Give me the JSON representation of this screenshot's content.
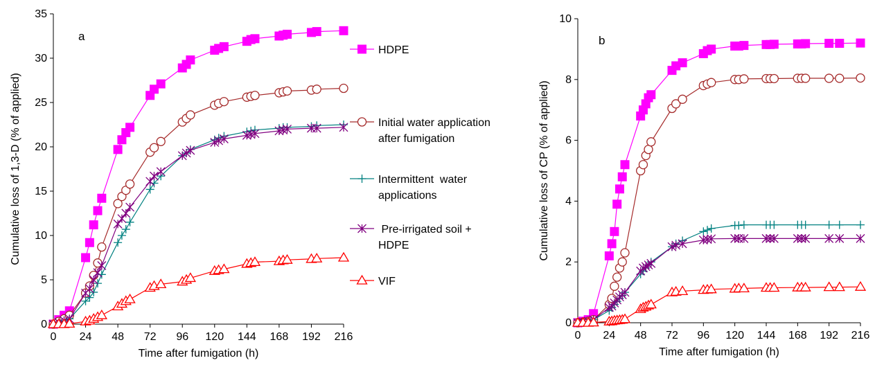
{
  "chart_data": [
    {
      "type": "line",
      "panel_label": "a",
      "xlabel": "Time after fumigation (h)",
      "ylabel": "Cumulative loss of 1,3-D (% of applied)",
      "xlim": [
        0,
        216
      ],
      "ylim": [
        0,
        35
      ],
      "xticks": [
        0,
        24,
        48,
        72,
        96,
        120,
        144,
        168,
        192,
        216
      ],
      "yticks": [
        0,
        5,
        10,
        15,
        20,
        25,
        30,
        35
      ],
      "grid": false,
      "legend_position": "right",
      "series": [
        {
          "name": "HDPE",
          "color": "#ff00ff",
          "marker": "filled-square",
          "x": [
            0,
            4,
            8,
            12,
            24,
            27,
            30,
            33,
            36,
            48,
            51,
            54,
            57,
            72,
            75,
            80,
            96,
            99,
            102,
            120,
            123,
            127,
            144,
            147,
            150,
            168,
            171,
            174,
            192,
            196,
            216
          ],
          "y": [
            0,
            0.5,
            1,
            1.5,
            7.5,
            9.2,
            11.2,
            12.8,
            14.2,
            19.7,
            20.8,
            21.6,
            22.2,
            25.8,
            26.5,
            27.1,
            28.9,
            29.3,
            29.8,
            30.9,
            31.1,
            31.3,
            31.9,
            32.1,
            32.2,
            32.5,
            32.6,
            32.7,
            32.9,
            33.0,
            33.1
          ]
        },
        {
          "name": "Initial water application after fumigation",
          "color": "#a52a2a",
          "marker": "open-circle",
          "x": [
            0,
            4,
            8,
            12,
            24,
            27,
            30,
            33,
            36,
            48,
            51,
            54,
            57,
            72,
            75,
            80,
            96,
            99,
            102,
            120,
            123,
            127,
            144,
            147,
            150,
            168,
            171,
            174,
            192,
            196,
            216
          ],
          "y": [
            0,
            0.3,
            0.6,
            1.0,
            3.5,
            4.3,
            5.5,
            6.9,
            8.7,
            13.6,
            14.4,
            15.1,
            15.8,
            19.4,
            19.9,
            20.6,
            22.8,
            23.2,
            23.6,
            24.7,
            24.9,
            25.1,
            25.6,
            25.7,
            25.8,
            26.1,
            26.2,
            26.3,
            26.4,
            26.5,
            26.6
          ]
        },
        {
          "name": "Intermittent  water applications",
          "color": "#008080",
          "marker": "plus",
          "x": [
            0,
            4,
            8,
            12,
            24,
            27,
            30,
            33,
            36,
            48,
            51,
            54,
            57,
            72,
            75,
            80,
            96,
            99,
            102,
            120,
            123,
            127,
            144,
            147,
            150,
            168,
            171,
            174,
            192,
            196,
            216
          ],
          "y": [
            0,
            0.2,
            0.4,
            0.6,
            2.6,
            3.0,
            3.6,
            4.6,
            5.6,
            9.2,
            10.0,
            10.7,
            11.5,
            15.2,
            15.9,
            16.7,
            19.0,
            19.3,
            19.7,
            20.8,
            21.0,
            21.2,
            21.7,
            21.8,
            21.9,
            22.1,
            22.2,
            22.2,
            22.3,
            22.4,
            22.5
          ]
        },
        {
          "name": "Pre-irrigated soil + HDPE",
          "color": "#800080",
          "marker": "asterisk",
          "x": [
            0,
            4,
            8,
            12,
            24,
            27,
            30,
            33,
            36,
            48,
            51,
            54,
            57,
            72,
            75,
            80,
            96,
            99,
            102,
            120,
            123,
            127,
            144,
            147,
            150,
            168,
            171,
            174,
            192,
            196,
            216
          ],
          "y": [
            0,
            0.2,
            0.4,
            0.6,
            3.5,
            4.0,
            5.0,
            5.8,
            6.6,
            11.3,
            11.9,
            12.5,
            13.2,
            16.1,
            16.7,
            17.2,
            19.0,
            19.3,
            19.6,
            20.5,
            20.7,
            20.9,
            21.3,
            21.4,
            21.5,
            21.8,
            21.9,
            22.0,
            22.1,
            22.1,
            22.2
          ]
        },
        {
          "name": "VIF",
          "color": "#ff0000",
          "marker": "open-triangle",
          "x": [
            0,
            4,
            8,
            12,
            24,
            27,
            30,
            33,
            36,
            48,
            51,
            54,
            57,
            72,
            75,
            80,
            96,
            99,
            102,
            120,
            123,
            127,
            144,
            147,
            150,
            168,
            171,
            174,
            192,
            196,
            216
          ],
          "y": [
            0,
            0,
            0,
            0.05,
            0.3,
            0.4,
            0.6,
            0.8,
            1.0,
            2.0,
            2.3,
            2.6,
            2.8,
            4.1,
            4.3,
            4.5,
            4.8,
            5.0,
            5.2,
            6.0,
            6.1,
            6.2,
            6.8,
            6.9,
            7.0,
            7.1,
            7.2,
            7.25,
            7.35,
            7.4,
            7.5
          ]
        }
      ]
    },
    {
      "type": "line",
      "panel_label": "b",
      "xlabel": "Time after fumigation (h)",
      "ylabel": "Cumulative loss of CP (% of applied)",
      "xlim": [
        0,
        216
      ],
      "ylim": [
        0,
        10
      ],
      "xticks": [
        0,
        24,
        48,
        72,
        96,
        120,
        144,
        168,
        192,
        216
      ],
      "yticks": [
        0,
        2,
        4,
        6,
        8,
        10
      ],
      "grid": false,
      "series": [
        {
          "name": "HDPE",
          "color": "#ff00ff",
          "marker": "filled-square",
          "x": [
            0,
            4,
            8,
            12,
            24,
            26,
            28,
            30,
            32,
            34,
            36,
            48,
            50,
            52,
            54,
            56,
            72,
            75,
            80,
            96,
            99,
            102,
            120,
            123,
            127,
            144,
            147,
            150,
            168,
            171,
            174,
            192,
            200,
            216
          ],
          "y": [
            0,
            0.05,
            0.1,
            0.3,
            2.2,
            2.6,
            3.0,
            3.9,
            4.4,
            4.8,
            5.2,
            6.8,
            7.0,
            7.2,
            7.4,
            7.5,
            8.3,
            8.45,
            8.55,
            8.85,
            8.95,
            9.0,
            9.1,
            9.1,
            9.12,
            9.15,
            9.15,
            9.16,
            9.17,
            9.17,
            9.18,
            9.19,
            9.19,
            9.2
          ]
        },
        {
          "name": "Initial water application after fumigation",
          "color": "#a52a2a",
          "marker": "open-circle",
          "x": [
            0,
            4,
            8,
            12,
            24,
            26,
            28,
            30,
            32,
            34,
            36,
            48,
            50,
            52,
            54,
            56,
            72,
            75,
            80,
            96,
            99,
            102,
            120,
            123,
            127,
            144,
            147,
            150,
            168,
            171,
            174,
            192,
            200,
            216
          ],
          "y": [
            0,
            0.02,
            0.05,
            0.1,
            0.6,
            0.8,
            1.2,
            1.5,
            1.8,
            2.0,
            2.3,
            5.0,
            5.2,
            5.5,
            5.7,
            5.95,
            7.05,
            7.2,
            7.35,
            7.8,
            7.85,
            7.9,
            8.0,
            8.0,
            8.02,
            8.03,
            8.03,
            8.03,
            8.04,
            8.04,
            8.04,
            8.04,
            8.04,
            8.05
          ]
        },
        {
          "name": "Intermittent  water applications",
          "color": "#008080",
          "marker": "plus",
          "x": [
            0,
            4,
            8,
            12,
            24,
            26,
            28,
            30,
            32,
            34,
            36,
            48,
            50,
            52,
            54,
            56,
            72,
            75,
            80,
            96,
            99,
            102,
            120,
            123,
            127,
            144,
            147,
            150,
            168,
            171,
            174,
            192,
            200,
            216
          ],
          "y": [
            0,
            0.02,
            0.05,
            0.1,
            0.4,
            0.5,
            0.6,
            0.7,
            0.8,
            0.9,
            1.0,
            1.6,
            1.7,
            1.8,
            1.9,
            2.0,
            2.5,
            2.6,
            2.7,
            3.0,
            3.05,
            3.1,
            3.2,
            3.2,
            3.22,
            3.22,
            3.22,
            3.22,
            3.22,
            3.22,
            3.22,
            3.22,
            3.22,
            3.22
          ]
        },
        {
          "name": "Pre-irrigated soil + HDPE",
          "color": "#800080",
          "marker": "asterisk",
          "x": [
            0,
            4,
            8,
            12,
            24,
            26,
            28,
            30,
            32,
            34,
            36,
            48,
            50,
            52,
            54,
            56,
            72,
            75,
            80,
            96,
            99,
            102,
            120,
            123,
            127,
            144,
            147,
            150,
            168,
            171,
            174,
            192,
            200,
            216
          ],
          "y": [
            0,
            0.02,
            0.05,
            0.1,
            0.5,
            0.55,
            0.65,
            0.75,
            0.85,
            0.92,
            1.0,
            1.7,
            1.8,
            1.85,
            1.9,
            1.95,
            2.5,
            2.55,
            2.6,
            2.72,
            2.74,
            2.76,
            2.77,
            2.77,
            2.77,
            2.77,
            2.77,
            2.77,
            2.77,
            2.77,
            2.77,
            2.77,
            2.77,
            2.77
          ]
        },
        {
          "name": "VIF",
          "color": "#ff0000",
          "marker": "open-triangle",
          "x": [
            0,
            4,
            8,
            12,
            24,
            26,
            28,
            30,
            32,
            34,
            36,
            48,
            50,
            52,
            54,
            56,
            72,
            75,
            80,
            96,
            99,
            102,
            120,
            123,
            127,
            144,
            147,
            150,
            168,
            171,
            174,
            192,
            200,
            216
          ],
          "y": [
            0,
            0,
            0,
            0.01,
            0.04,
            0.05,
            0.07,
            0.08,
            0.09,
            0.1,
            0.12,
            0.45,
            0.5,
            0.53,
            0.57,
            0.6,
            1.0,
            1.02,
            1.04,
            1.08,
            1.09,
            1.1,
            1.12,
            1.13,
            1.13,
            1.15,
            1.15,
            1.15,
            1.16,
            1.16,
            1.16,
            1.17,
            1.17,
            1.18
          ]
        }
      ]
    }
  ]
}
